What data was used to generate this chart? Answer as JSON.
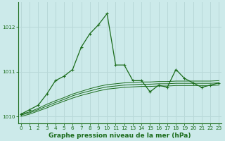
{
  "title": "Graphe pression niveau de la mer (hPa)",
  "bg_color": "#cceaea",
  "grid_color": "#b8d8d8",
  "line_color": "#1a6b1a",
  "x": [
    0,
    1,
    2,
    3,
    4,
    5,
    6,
    7,
    8,
    9,
    10,
    11,
    12,
    13,
    14,
    15,
    16,
    17,
    18,
    19,
    20,
    21,
    22,
    23
  ],
  "y_main": [
    1010.05,
    1010.15,
    1010.25,
    1010.5,
    1010.8,
    1010.9,
    1011.05,
    1011.55,
    1011.85,
    1012.05,
    1012.3,
    1011.15,
    1011.15,
    1010.8,
    1010.8,
    1010.55,
    1010.7,
    1010.65,
    1011.05,
    1010.85,
    1010.75,
    1010.65,
    1010.7,
    1010.75
  ],
  "y_smooth1": [
    1010.05,
    1010.1,
    1010.18,
    1010.27,
    1010.35,
    1010.42,
    1010.5,
    1010.56,
    1010.62,
    1010.67,
    1010.71,
    1010.73,
    1010.75,
    1010.76,
    1010.77,
    1010.77,
    1010.78,
    1010.78,
    1010.79,
    1010.79,
    1010.79,
    1010.79,
    1010.79,
    1010.8
  ],
  "y_smooth2": [
    1010.03,
    1010.08,
    1010.15,
    1010.23,
    1010.31,
    1010.38,
    1010.46,
    1010.52,
    1010.57,
    1010.62,
    1010.66,
    1010.68,
    1010.7,
    1010.71,
    1010.72,
    1010.72,
    1010.73,
    1010.73,
    1010.74,
    1010.74,
    1010.74,
    1010.74,
    1010.74,
    1010.75
  ],
  "y_smooth3": [
    1010.0,
    1010.05,
    1010.12,
    1010.19,
    1010.27,
    1010.34,
    1010.41,
    1010.47,
    1010.52,
    1010.57,
    1010.61,
    1010.63,
    1010.65,
    1010.66,
    1010.67,
    1010.67,
    1010.68,
    1010.68,
    1010.69,
    1010.69,
    1010.69,
    1010.69,
    1010.69,
    1010.7
  ],
  "ylim": [
    1009.85,
    1012.55
  ],
  "yticks": [
    1010,
    1011,
    1012
  ],
  "xlim": [
    -0.3,
    23.3
  ],
  "xticks": [
    0,
    1,
    2,
    3,
    4,
    5,
    6,
    7,
    8,
    9,
    10,
    11,
    12,
    13,
    14,
    15,
    16,
    17,
    18,
    19,
    20,
    21,
    22,
    23
  ],
  "title_fontsize": 6.5,
  "tick_fontsize": 5.2,
  "ylabel_color": "#1a6b1a"
}
